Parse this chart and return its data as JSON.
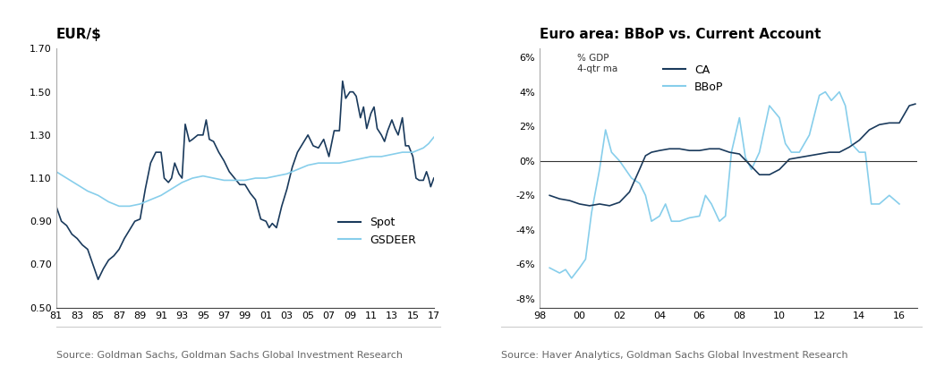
{
  "left_title": "EUR/$",
  "left_source": "Source: Goldman Sachs, Goldman Sachs Global Investment Research",
  "right_title": "Euro area: BBoP vs. Current Account",
  "right_source": "Source: Haver Analytics, Goldman Sachs Global Investment Research",
  "spot_color": "#1a3a5c",
  "gsdeer_color": "#87ceeb",
  "ca_color": "#1a3a5c",
  "bbop_color": "#87ceeb",
  "title_fontsize": 11,
  "tick_fontsize": 8,
  "source_fontsize": 8,
  "legend_fontsize": 9
}
